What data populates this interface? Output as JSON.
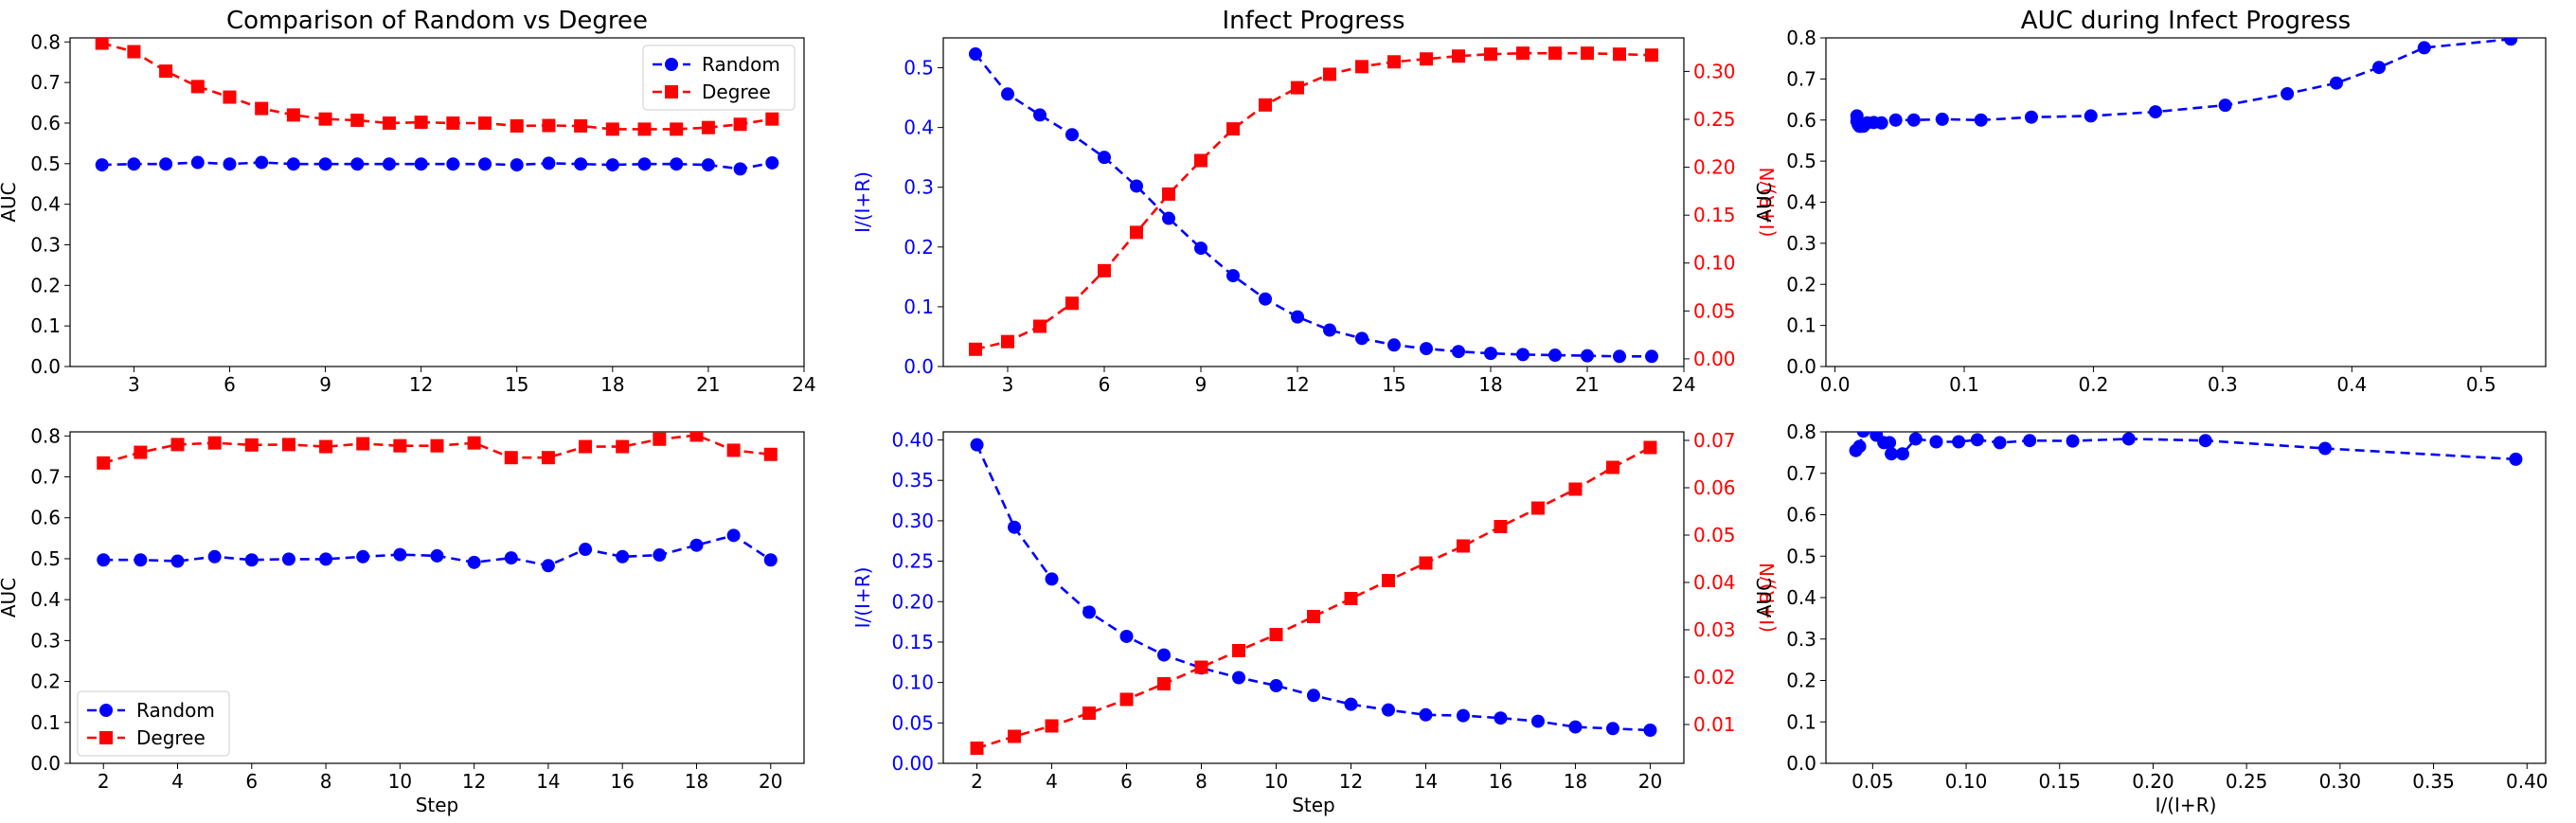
{
  "chart_data": [
    {
      "type": "line",
      "title": "Comparison of Random vs Degree",
      "xlabel": "",
      "ylabel": "AUC",
      "xlim": [
        1.0,
        24.0
      ],
      "ylim": [
        0.0,
        0.81
      ],
      "xticks": [
        3,
        6,
        9,
        12,
        15,
        18,
        21,
        24
      ],
      "yticks": [
        0.0,
        0.1,
        0.2,
        0.3,
        0.4,
        0.5,
        0.6,
        0.7,
        0.8
      ],
      "legend": "top-right",
      "series": [
        {
          "name": "Random",
          "color": "#0000ff",
          "marker": "circle",
          "x": [
            2,
            3,
            4,
            5,
            6,
            7,
            8,
            9,
            10,
            11,
            12,
            13,
            14,
            15,
            16,
            17,
            18,
            19,
            20,
            21,
            22,
            23
          ],
          "y": [
            0.497,
            0.499,
            0.499,
            0.503,
            0.499,
            0.503,
            0.499,
            0.499,
            0.499,
            0.499,
            0.499,
            0.499,
            0.499,
            0.497,
            0.501,
            0.499,
            0.497,
            0.499,
            0.499,
            0.497,
            0.487,
            0.502
          ]
        },
        {
          "name": "Degree",
          "color": "#ff0000",
          "marker": "square",
          "x": [
            2,
            3,
            4,
            5,
            6,
            7,
            8,
            9,
            10,
            11,
            12,
            13,
            14,
            15,
            16,
            17,
            18,
            19,
            20,
            21,
            22,
            23
          ],
          "y": [
            0.797,
            0.776,
            0.728,
            0.69,
            0.664,
            0.636,
            0.62,
            0.61,
            0.607,
            0.6,
            0.602,
            0.6,
            0.6,
            0.593,
            0.594,
            0.593,
            0.585,
            0.585,
            0.585,
            0.589,
            0.597,
            0.61
          ]
        }
      ]
    },
    {
      "type": "line",
      "title": "Infect Progress",
      "xlabel": "",
      "ylabel": "I/(I+R)",
      "ylabel_right": "(I+R)/N",
      "xlim": [
        1.0,
        24.0
      ],
      "ylim": [
        0.0,
        0.55
      ],
      "ylim_right": [
        -0.008,
        0.335
      ],
      "xticks": [
        3,
        6,
        9,
        12,
        15,
        18,
        21,
        24
      ],
      "yticks": [
        0.0,
        0.1,
        0.2,
        0.3,
        0.4,
        0.5
      ],
      "yticks_right": [
        0.0,
        0.05,
        0.1,
        0.15,
        0.2,
        0.25,
        0.3
      ],
      "series": [
        {
          "color": "#0000ff",
          "marker": "circle",
          "axis": "left",
          "x": [
            2,
            3,
            4,
            5,
            6,
            7,
            8,
            9,
            10,
            11,
            12,
            13,
            14,
            15,
            16,
            17,
            18,
            19,
            20,
            21,
            22,
            23
          ],
          "y": [
            0.523,
            0.456,
            0.421,
            0.388,
            0.35,
            0.302,
            0.248,
            0.198,
            0.152,
            0.113,
            0.083,
            0.061,
            0.047,
            0.036,
            0.03,
            0.025,
            0.022,
            0.02,
            0.019,
            0.018,
            0.017,
            0.017
          ]
        },
        {
          "color": "#ff0000",
          "marker": "square",
          "axis": "right",
          "x": [
            2,
            3,
            4,
            5,
            6,
            7,
            8,
            9,
            10,
            11,
            12,
            13,
            14,
            15,
            16,
            17,
            18,
            19,
            20,
            21,
            22,
            23
          ],
          "y": [
            0.01,
            0.018,
            0.034,
            0.058,
            0.092,
            0.132,
            0.172,
            0.207,
            0.24,
            0.265,
            0.283,
            0.297,
            0.305,
            0.31,
            0.313,
            0.316,
            0.318,
            0.319,
            0.319,
            0.319,
            0.318,
            0.317
          ]
        }
      ]
    },
    {
      "type": "line",
      "title": "AUC during Infect Progress",
      "xlabel": "",
      "ylabel": "AUC",
      "xlim": [
        -0.007,
        0.55
      ],
      "ylim": [
        0.0,
        0.8
      ],
      "xticks": [
        0.0,
        0.1,
        0.2,
        0.3,
        0.4,
        0.5
      ],
      "yticks": [
        0.0,
        0.1,
        0.2,
        0.3,
        0.4,
        0.5,
        0.6,
        0.7,
        0.8
      ],
      "series": [
        {
          "color": "#0000ff",
          "marker": "circle",
          "x": [
            0.523,
            0.456,
            0.421,
            0.388,
            0.35,
            0.302,
            0.248,
            0.198,
            0.152,
            0.113,
            0.083,
            0.061,
            0.047,
            0.036,
            0.03,
            0.025,
            0.022,
            0.02,
            0.019,
            0.018,
            0.017,
            0.017
          ],
          "y": [
            0.797,
            0.776,
            0.728,
            0.69,
            0.664,
            0.636,
            0.62,
            0.61,
            0.607,
            0.6,
            0.602,
            0.6,
            0.6,
            0.593,
            0.594,
            0.593,
            0.585,
            0.585,
            0.585,
            0.589,
            0.597,
            0.61
          ]
        }
      ]
    },
    {
      "type": "line",
      "title": "",
      "xlabel": "Step",
      "ylabel": "AUC",
      "xlim": [
        1.1,
        20.9
      ],
      "ylim": [
        0.0,
        0.81
      ],
      "xticks": [
        2,
        4,
        6,
        8,
        10,
        12,
        14,
        16,
        18,
        20
      ],
      "yticks": [
        0.0,
        0.1,
        0.2,
        0.3,
        0.4,
        0.5,
        0.6,
        0.7,
        0.8
      ],
      "legend": "bottom-left",
      "series": [
        {
          "name": "Random",
          "color": "#0000ff",
          "marker": "circle",
          "x": [
            2,
            3,
            4,
            5,
            6,
            7,
            8,
            9,
            10,
            11,
            12,
            13,
            14,
            15,
            16,
            17,
            18,
            19,
            20
          ],
          "y": [
            0.497,
            0.497,
            0.494,
            0.505,
            0.497,
            0.499,
            0.499,
            0.505,
            0.51,
            0.507,
            0.491,
            0.502,
            0.483,
            0.523,
            0.505,
            0.509,
            0.533,
            0.557,
            0.497
          ]
        },
        {
          "name": "Degree",
          "color": "#ff0000",
          "marker": "square",
          "x": [
            2,
            3,
            4,
            5,
            6,
            7,
            8,
            9,
            10,
            11,
            12,
            13,
            14,
            15,
            16,
            17,
            18,
            19,
            20
          ],
          "y": [
            0.734,
            0.76,
            0.779,
            0.783,
            0.778,
            0.779,
            0.774,
            0.781,
            0.776,
            0.776,
            0.783,
            0.747,
            0.747,
            0.774,
            0.774,
            0.792,
            0.802,
            0.765,
            0.755
          ]
        }
      ]
    },
    {
      "type": "line",
      "title": "",
      "xlabel": "Step",
      "ylabel": "I/(I+R)",
      "ylabel_right": "(I+R)/N",
      "xlim": [
        1.1,
        20.9
      ],
      "ylim": [
        0.0,
        0.41
      ],
      "ylim_right": [
        0.0018,
        0.0718
      ],
      "xticks": [
        2,
        4,
        6,
        8,
        10,
        12,
        14,
        16,
        18,
        20
      ],
      "yticks": [
        0.0,
        0.05,
        0.1,
        0.15,
        0.2,
        0.25,
        0.3,
        0.35,
        0.4
      ],
      "yticks_right": [
        0.01,
        0.02,
        0.03,
        0.04,
        0.05,
        0.06,
        0.07
      ],
      "series": [
        {
          "color": "#0000ff",
          "marker": "circle",
          "axis": "left",
          "x": [
            2,
            3,
            4,
            5,
            6,
            7,
            8,
            9,
            10,
            11,
            12,
            13,
            14,
            15,
            16,
            17,
            18,
            19,
            20
          ],
          "y": [
            0.394,
            0.292,
            0.228,
            0.187,
            0.157,
            0.134,
            0.118,
            0.106,
            0.096,
            0.084,
            0.073,
            0.066,
            0.06,
            0.059,
            0.056,
            0.052,
            0.045,
            0.043,
            0.041
          ]
        },
        {
          "color": "#ff0000",
          "marker": "square",
          "axis": "right",
          "x": [
            2,
            3,
            4,
            5,
            6,
            7,
            8,
            9,
            10,
            11,
            12,
            13,
            14,
            15,
            16,
            17,
            18,
            19,
            20
          ],
          "y": [
            0.005,
            0.0075,
            0.0097,
            0.0124,
            0.0153,
            0.0186,
            0.0221,
            0.0256,
            0.029,
            0.0328,
            0.0366,
            0.0404,
            0.0441,
            0.0477,
            0.0518,
            0.0557,
            0.0597,
            0.0643,
            0.0685
          ]
        }
      ]
    },
    {
      "type": "line",
      "title": "",
      "xlabel": "I/(I+R)",
      "ylabel": "AUC",
      "xlim": [
        0.025,
        0.41
      ],
      "ylim": [
        0.0,
        0.8
      ],
      "xticks": [
        0.05,
        0.1,
        0.15,
        0.2,
        0.25,
        0.3,
        0.35,
        0.4
      ],
      "yticks": [
        0.0,
        0.1,
        0.2,
        0.3,
        0.4,
        0.5,
        0.6,
        0.7,
        0.8
      ],
      "series": [
        {
          "color": "#0000ff",
          "marker": "circle",
          "x": [
            0.394,
            0.292,
            0.228,
            0.187,
            0.157,
            0.134,
            0.118,
            0.106,
            0.096,
            0.084,
            0.073,
            0.066,
            0.06,
            0.059,
            0.056,
            0.052,
            0.045,
            0.043,
            0.041
          ],
          "y": [
            0.734,
            0.76,
            0.779,
            0.783,
            0.778,
            0.779,
            0.774,
            0.781,
            0.776,
            0.776,
            0.783,
            0.747,
            0.747,
            0.774,
            0.774,
            0.792,
            0.802,
            0.765,
            0.755
          ]
        }
      ]
    }
  ]
}
